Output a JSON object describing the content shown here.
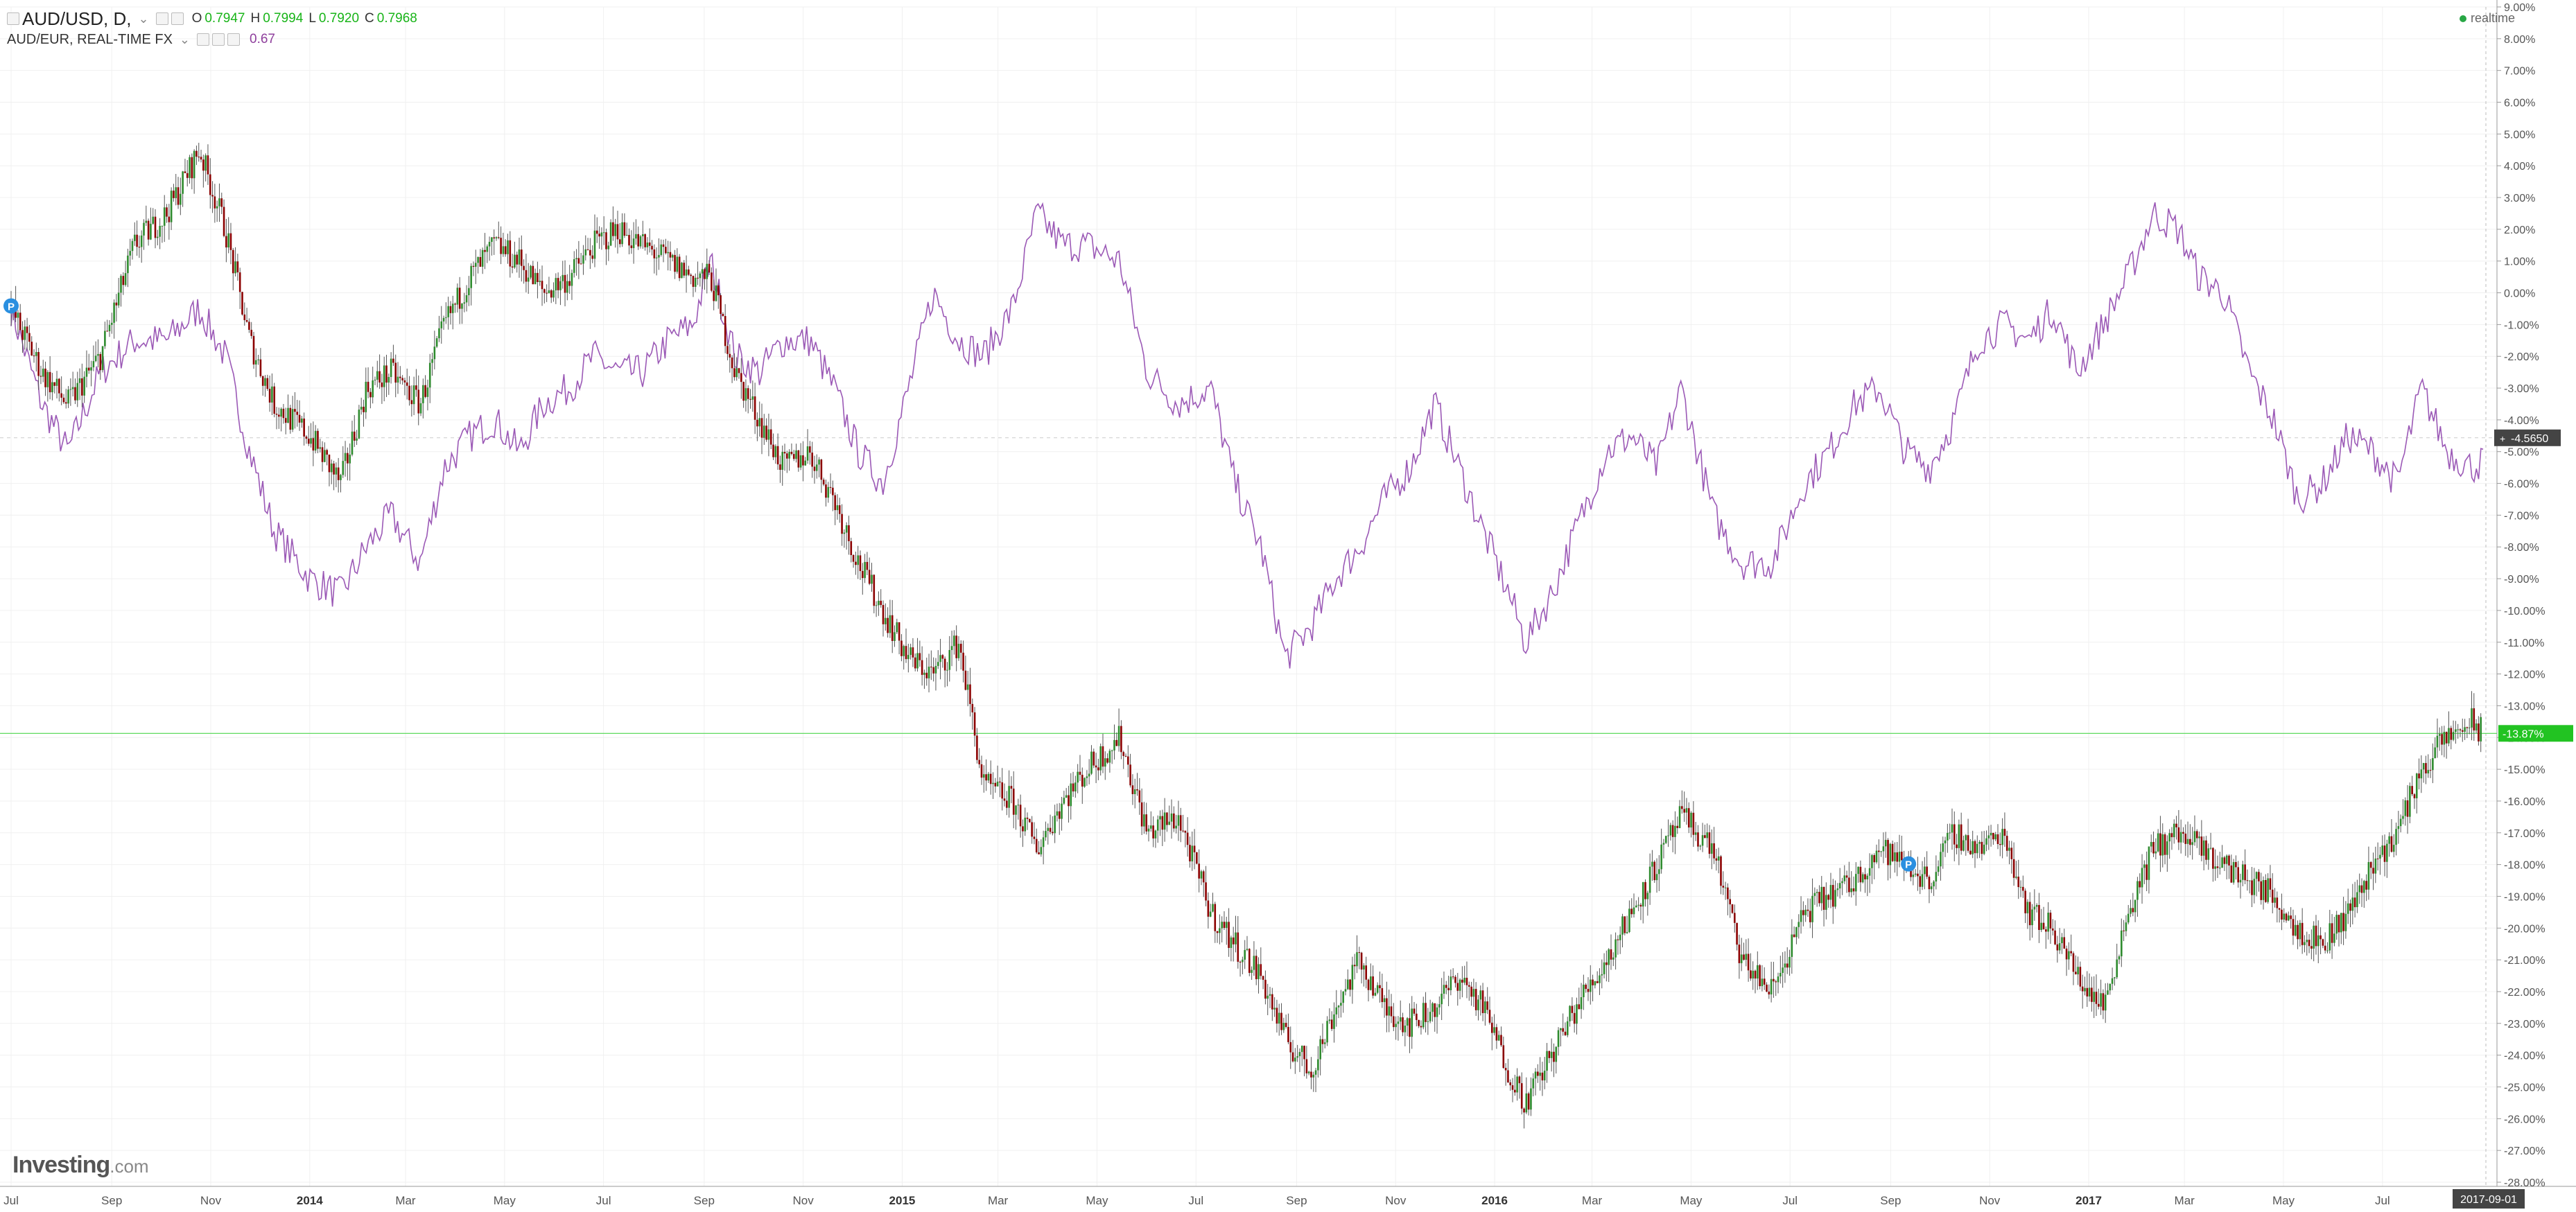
{
  "header": {
    "symbol_title": "AUD/USD, D,",
    "ohlc": [
      {
        "key": "O",
        "value": "0.7947"
      },
      {
        "key": "H",
        "value": "0.7994"
      },
      {
        "key": "L",
        "value": "0.7920"
      },
      {
        "key": "C",
        "value": "0.7968"
      }
    ],
    "compare_title": "AUD/EUR, REAL-TIME FX",
    "compare_value": "0.67",
    "realtime_label": "realtime"
  },
  "logo": {
    "brand": "Investing",
    "domain": ".com"
  },
  "colors": {
    "up": "#2e8b2e",
    "down": "#8b0000",
    "wick": "#555555",
    "compare_line": "#9b59b6",
    "current_line": "#4cd64c",
    "current_badge": "#22c322",
    "marker_badge": "#444444",
    "axis_text": "#555555",
    "grid": "#f0f0f0"
  },
  "chart_data": {
    "type": "line",
    "title": "",
    "xlabel": "",
    "ylabel": "",
    "y_scale": "percent",
    "ylim": [
      -28,
      9
    ],
    "xlim": [
      "2013-07-01",
      "2017-09-01"
    ],
    "x_tick_labels": [
      "Jul",
      "Sep",
      "Nov",
      "2014",
      "Mar",
      "May",
      "Jul",
      "Sep",
      "Nov",
      "2015",
      "Mar",
      "May",
      "Jul",
      "Sep",
      "Nov",
      "2016",
      "Mar",
      "May",
      "Jul",
      "Sep",
      "Nov",
      "2017",
      "Mar",
      "May",
      "Jul"
    ],
    "x_tick_dates": [
      "2013-07-01",
      "2013-09-01",
      "2013-11-01",
      "2014-01-01",
      "2014-03-01",
      "2014-05-01",
      "2014-07-01",
      "2014-09-01",
      "2014-11-01",
      "2015-01-01",
      "2015-03-01",
      "2015-05-01",
      "2015-07-01",
      "2015-09-01",
      "2015-11-01",
      "2016-01-01",
      "2016-03-01",
      "2016-05-01",
      "2016-07-01",
      "2016-09-01",
      "2016-11-01",
      "2017-01-01",
      "2017-03-01",
      "2017-05-01",
      "2017-07-01"
    ],
    "y_tick_labels": [
      "9.00%",
      "8.00%",
      "7.00%",
      "6.00%",
      "5.00%",
      "4.00%",
      "3.00%",
      "2.00%",
      "1.00%",
      "0.00%",
      "-1.00%",
      "-2.00%",
      "-3.00%",
      "-4.00%",
      "-5.00%",
      "-6.00%",
      "-7.00%",
      "-8.00%",
      "-9.00%",
      "-10.00%",
      "-11.00%",
      "-12.00%",
      "-13.00%",
      "-14.00%",
      "-15.00%",
      "-16.00%",
      "-17.00%",
      "-18.00%",
      "-19.00%",
      "-20.00%",
      "-21.00%",
      "-22.00%",
      "-23.00%",
      "-24.00%",
      "-25.00%",
      "-26.00%",
      "-27.00%",
      "-28.00%"
    ],
    "y_tick_values": [
      9,
      8,
      7,
      6,
      5,
      4,
      3,
      2,
      1,
      0,
      -1,
      -2,
      -3,
      -4,
      -5,
      -6,
      -7,
      -8,
      -9,
      -10,
      -11,
      -12,
      -13,
      -14,
      -15,
      -16,
      -17,
      -18,
      -19,
      -20,
      -21,
      -22,
      -23,
      -24,
      -25,
      -26,
      -27,
      -28
    ],
    "grid": true,
    "current_date_label": "2017-09-01",
    "series": [
      {
        "name": "AUD/USD, D,",
        "kind": "candlestick",
        "x": [
          "2013-07-01",
          "2013-07-20",
          "2013-08-05",
          "2013-08-25",
          "2013-09-15",
          "2013-10-05",
          "2013-10-25",
          "2013-11-10",
          "2013-11-25",
          "2013-12-10",
          "2014-01-01",
          "2014-01-20",
          "2014-02-05",
          "2014-02-20",
          "2014-03-10",
          "2014-03-25",
          "2014-04-10",
          "2014-04-25",
          "2014-05-10",
          "2014-05-25",
          "2014-06-10",
          "2014-06-25",
          "2014-07-10",
          "2014-07-25",
          "2014-08-10",
          "2014-08-25",
          "2014-09-05",
          "2014-09-20",
          "2014-10-05",
          "2014-10-20",
          "2014-11-05",
          "2014-11-20",
          "2014-12-05",
          "2014-12-20",
          "2015-01-05",
          "2015-01-20",
          "2015-02-05",
          "2015-02-20",
          "2015-03-10",
          "2015-03-25",
          "2015-04-10",
          "2015-04-25",
          "2015-05-15",
          "2015-06-01",
          "2015-06-20",
          "2015-07-10",
          "2015-07-25",
          "2015-08-10",
          "2015-08-25",
          "2015-09-10",
          "2015-09-25",
          "2015-10-10",
          "2015-10-25",
          "2015-11-10",
          "2015-11-25",
          "2015-12-10",
          "2015-12-25",
          "2016-01-10",
          "2016-01-20",
          "2016-02-05",
          "2016-02-20",
          "2016-03-10",
          "2016-03-25",
          "2016-04-10",
          "2016-04-25",
          "2016-05-15",
          "2016-06-01",
          "2016-06-20",
          "2016-07-10",
          "2016-07-25",
          "2016-08-10",
          "2016-08-25",
          "2016-09-10",
          "2016-09-25",
          "2016-10-10",
          "2016-10-25",
          "2016-11-10",
          "2016-11-25",
          "2016-12-10",
          "2016-12-25",
          "2017-01-10",
          "2017-01-25",
          "2017-02-10",
          "2017-02-25",
          "2017-03-10",
          "2017-03-25",
          "2017-04-10",
          "2017-04-25",
          "2017-05-10",
          "2017-05-25",
          "2017-06-10",
          "2017-06-25",
          "2017-07-10",
          "2017-07-25",
          "2017-08-10",
          "2017-08-25",
          "2017-09-01"
        ],
        "values": [
          -0.5,
          -2.5,
          -3.5,
          -2.0,
          1.5,
          2.5,
          4.5,
          2.0,
          -1.5,
          -3.5,
          -4.5,
          -6.0,
          -3.0,
          -2.5,
          -3.5,
          -1.0,
          0.5,
          1.5,
          1.0,
          0.0,
          0.5,
          1.5,
          2.0,
          1.5,
          1.0,
          0.5,
          0.5,
          -2.5,
          -4.0,
          -5.5,
          -5.0,
          -6.5,
          -8.5,
          -10.0,
          -11.5,
          -12.0,
          -11.0,
          -15.5,
          -16.0,
          -17.5,
          -16.0,
          -15.0,
          -14.0,
          -17.0,
          -16.5,
          -19.5,
          -20.5,
          -21.5,
          -23.5,
          -24.5,
          -22.5,
          -21.0,
          -22.5,
          -23.0,
          -22.5,
          -21.5,
          -22.5,
          -24.5,
          -25.5,
          -24.0,
          -22.5,
          -21.0,
          -19.5,
          -18.0,
          -16.5,
          -17.5,
          -21.0,
          -22.0,
          -19.5,
          -19.0,
          -18.5,
          -17.5,
          -18.0,
          -18.5,
          -17.0,
          -17.5,
          -17.0,
          -19.5,
          -20.0,
          -21.5,
          -22.5,
          -19.5,
          -17.5,
          -17.0,
          -17.5,
          -18.0,
          -18.5,
          -19.0,
          -20.0,
          -20.5,
          -19.5,
          -18.0,
          -17.0,
          -15.0,
          -14.0,
          -13.5,
          -13.87
        ]
      },
      {
        "name": "AUD/EUR, REAL-TIME FX",
        "kind": "line",
        "x": [
          "2013-07-01",
          "2013-07-20",
          "2013-08-05",
          "2013-08-25",
          "2013-09-15",
          "2013-10-05",
          "2013-10-25",
          "2013-11-10",
          "2013-11-25",
          "2013-12-10",
          "2014-01-01",
          "2014-01-20",
          "2014-02-05",
          "2014-02-20",
          "2014-03-10",
          "2014-03-25",
          "2014-04-10",
          "2014-04-25",
          "2014-05-10",
          "2014-05-25",
          "2014-06-10",
          "2014-06-25",
          "2014-07-10",
          "2014-07-25",
          "2014-08-10",
          "2014-08-25",
          "2014-09-05",
          "2014-09-20",
          "2014-10-05",
          "2014-10-20",
          "2014-11-05",
          "2014-11-20",
          "2014-12-05",
          "2014-12-20",
          "2015-01-05",
          "2015-01-20",
          "2015-02-05",
          "2015-02-20",
          "2015-03-10",
          "2015-03-25",
          "2015-04-10",
          "2015-04-25",
          "2015-05-15",
          "2015-06-01",
          "2015-06-20",
          "2015-07-10",
          "2015-07-25",
          "2015-08-10",
          "2015-08-25",
          "2015-09-10",
          "2015-09-25",
          "2015-10-10",
          "2015-10-25",
          "2015-11-10",
          "2015-11-25",
          "2015-12-10",
          "2015-12-25",
          "2016-01-10",
          "2016-01-20",
          "2016-02-05",
          "2016-02-20",
          "2016-03-10",
          "2016-03-25",
          "2016-04-10",
          "2016-04-25",
          "2016-05-15",
          "2016-06-01",
          "2016-06-20",
          "2016-07-10",
          "2016-07-25",
          "2016-08-10",
          "2016-08-25",
          "2016-09-10",
          "2016-09-25",
          "2016-10-10",
          "2016-10-25",
          "2016-11-10",
          "2016-11-25",
          "2016-12-10",
          "2016-12-25",
          "2017-01-10",
          "2017-01-25",
          "2017-02-10",
          "2017-02-25",
          "2017-03-10",
          "2017-03-25",
          "2017-04-10",
          "2017-04-25",
          "2017-05-10",
          "2017-05-25",
          "2017-06-10",
          "2017-06-25",
          "2017-07-10",
          "2017-07-25",
          "2017-08-10",
          "2017-08-25",
          "2017-09-01"
        ],
        "values": [
          -0.5,
          -3.5,
          -5.0,
          -2.5,
          -1.5,
          -1.5,
          -0.5,
          -2.0,
          -5.0,
          -7.5,
          -9.0,
          -9.5,
          -8.0,
          -7.0,
          -8.5,
          -5.5,
          -4.5,
          -4.0,
          -5.0,
          -3.5,
          -3.0,
          -2.0,
          -2.5,
          -2.5,
          -1.5,
          -1.0,
          1.0,
          -2.0,
          -2.5,
          -1.5,
          -1.5,
          -3.0,
          -5.0,
          -6.0,
          -3.0,
          0.0,
          -1.5,
          -2.0,
          -0.5,
          2.5,
          1.5,
          1.5,
          1.0,
          -2.5,
          -3.5,
          -3.0,
          -6.0,
          -8.0,
          -11.5,
          -10.5,
          -9.0,
          -8.0,
          -6.5,
          -5.5,
          -3.5,
          -5.5,
          -7.5,
          -9.5,
          -11.0,
          -9.5,
          -7.5,
          -5.0,
          -4.5,
          -5.5,
          -3.0,
          -7.0,
          -8.5,
          -8.5,
          -6.0,
          -5.0,
          -3.5,
          -3.0,
          -5.0,
          -5.5,
          -4.0,
          -1.5,
          -1.0,
          -1.5,
          -0.5,
          -2.5,
          -1.0,
          0.5,
          2.5,
          2.0,
          0.5,
          0.0,
          -2.5,
          -4.0,
          -6.5,
          -6.0,
          -4.5,
          -5.0,
          -6.0,
          -3.0,
          -5.0,
          -5.5,
          -5.3
        ]
      }
    ],
    "current_value_label": "-13.87%",
    "crosshair_label": "-4.5650",
    "crosshair_value": -4.565,
    "markers": [
      {
        "series": "AUD/EUR, REAL-TIME FX",
        "x": "2013-07-01",
        "label": "P"
      },
      {
        "series": "AUD/USD, D,",
        "x": "2016-09-12",
        "label": "P"
      }
    ]
  }
}
